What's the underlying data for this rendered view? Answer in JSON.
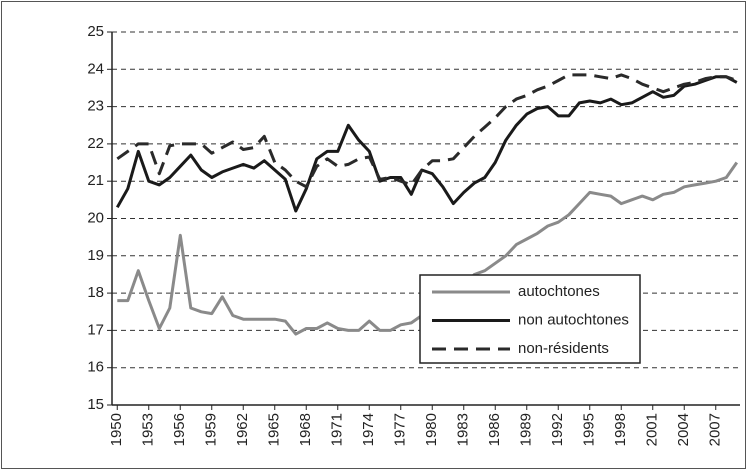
{
  "chart_data": {
    "type": "line",
    "x": [
      1950,
      1951,
      1952,
      1953,
      1954,
      1955,
      1956,
      1957,
      1958,
      1959,
      1960,
      1961,
      1962,
      1963,
      1964,
      1965,
      1966,
      1967,
      1968,
      1969,
      1970,
      1971,
      1972,
      1973,
      1974,
      1975,
      1976,
      1977,
      1978,
      1979,
      1980,
      1981,
      1982,
      1983,
      1984,
      1985,
      1986,
      1987,
      1988,
      1989,
      1990,
      1991,
      1992,
      1993,
      1994,
      1995,
      1996,
      1997,
      1998,
      1999,
      2000,
      2001,
      2002,
      2003,
      2004,
      2005,
      2006,
      2007,
      2008,
      2009
    ],
    "xlim": [
      1949.5,
      2009.5
    ],
    "xticks": [
      1950,
      1953,
      1956,
      1959,
      1962,
      1965,
      1968,
      1971,
      1974,
      1977,
      1980,
      1983,
      1986,
      1989,
      1992,
      1995,
      1998,
      2001,
      2004,
      2007
    ],
    "ylim": [
      15,
      25
    ],
    "yticks": [
      15,
      16,
      17,
      18,
      19,
      20,
      21,
      22,
      23,
      24,
      25
    ],
    "grid": true,
    "series": [
      {
        "name": "autochtones",
        "color": "#8a8a8a",
        "dash": false,
        "values": [
          17.8,
          17.8,
          18.6,
          17.8,
          17.05,
          17.6,
          19.55,
          17.6,
          17.5,
          17.45,
          17.9,
          17.4,
          17.3,
          17.3,
          17.3,
          17.3,
          17.25,
          16.9,
          17.05,
          17.05,
          17.2,
          17.05,
          17.0,
          17.0,
          17.25,
          17.0,
          17.0,
          17.15,
          17.2,
          17.4,
          17.5,
          17.7,
          17.9,
          18.2,
          18.5,
          18.6,
          18.8,
          19.0,
          19.3,
          19.45,
          19.6,
          19.8,
          19.9,
          20.1,
          20.4,
          20.7,
          20.65,
          20.6,
          20.4,
          20.5,
          20.6,
          20.5,
          20.65,
          20.7,
          20.85,
          20.9,
          20.95,
          21.0,
          21.1,
          21.5
        ]
      },
      {
        "name": "non autochtones",
        "color": "#1a1a1a",
        "dash": false,
        "values": [
          20.3,
          20.8,
          21.8,
          21.0,
          20.9,
          21.1,
          21.4,
          21.7,
          21.3,
          21.1,
          21.25,
          21.35,
          21.45,
          21.35,
          21.55,
          21.3,
          21.05,
          20.2,
          20.8,
          21.6,
          21.8,
          21.8,
          22.5,
          22.1,
          21.8,
          21.0,
          21.1,
          21.1,
          20.65,
          21.3,
          21.2,
          20.85,
          20.4,
          20.7,
          20.95,
          21.1,
          21.5,
          22.1,
          22.5,
          22.8,
          22.95,
          23.0,
          22.75,
          22.75,
          23.1,
          23.15,
          23.1,
          23.2,
          23.05,
          23.1,
          23.25,
          23.4,
          23.25,
          23.3,
          23.55,
          23.6,
          23.7,
          23.8,
          23.8,
          23.65
        ]
      },
      {
        "name": "non-résidents",
        "color": "#2a2a2a",
        "dash": true,
        "values": [
          21.6,
          21.8,
          22.0,
          22.0,
          21.2,
          21.95,
          22.0,
          22.0,
          22.0,
          21.75,
          21.9,
          22.05,
          21.85,
          21.9,
          22.2,
          21.5,
          21.3,
          21.0,
          20.85,
          21.4,
          21.6,
          21.4,
          21.45,
          21.6,
          21.65,
          21.05,
          21.1,
          21.0,
          20.9,
          21.3,
          21.55,
          21.55,
          21.6,
          21.9,
          22.2,
          22.45,
          22.7,
          23.0,
          23.2,
          23.3,
          23.45,
          23.55,
          23.7,
          23.85,
          23.85,
          23.85,
          23.8,
          23.75,
          23.85,
          23.75,
          23.6,
          23.5,
          23.4,
          23.5,
          23.6,
          23.65,
          23.75,
          23.8,
          23.8,
          23.7
        ]
      }
    ]
  }
}
